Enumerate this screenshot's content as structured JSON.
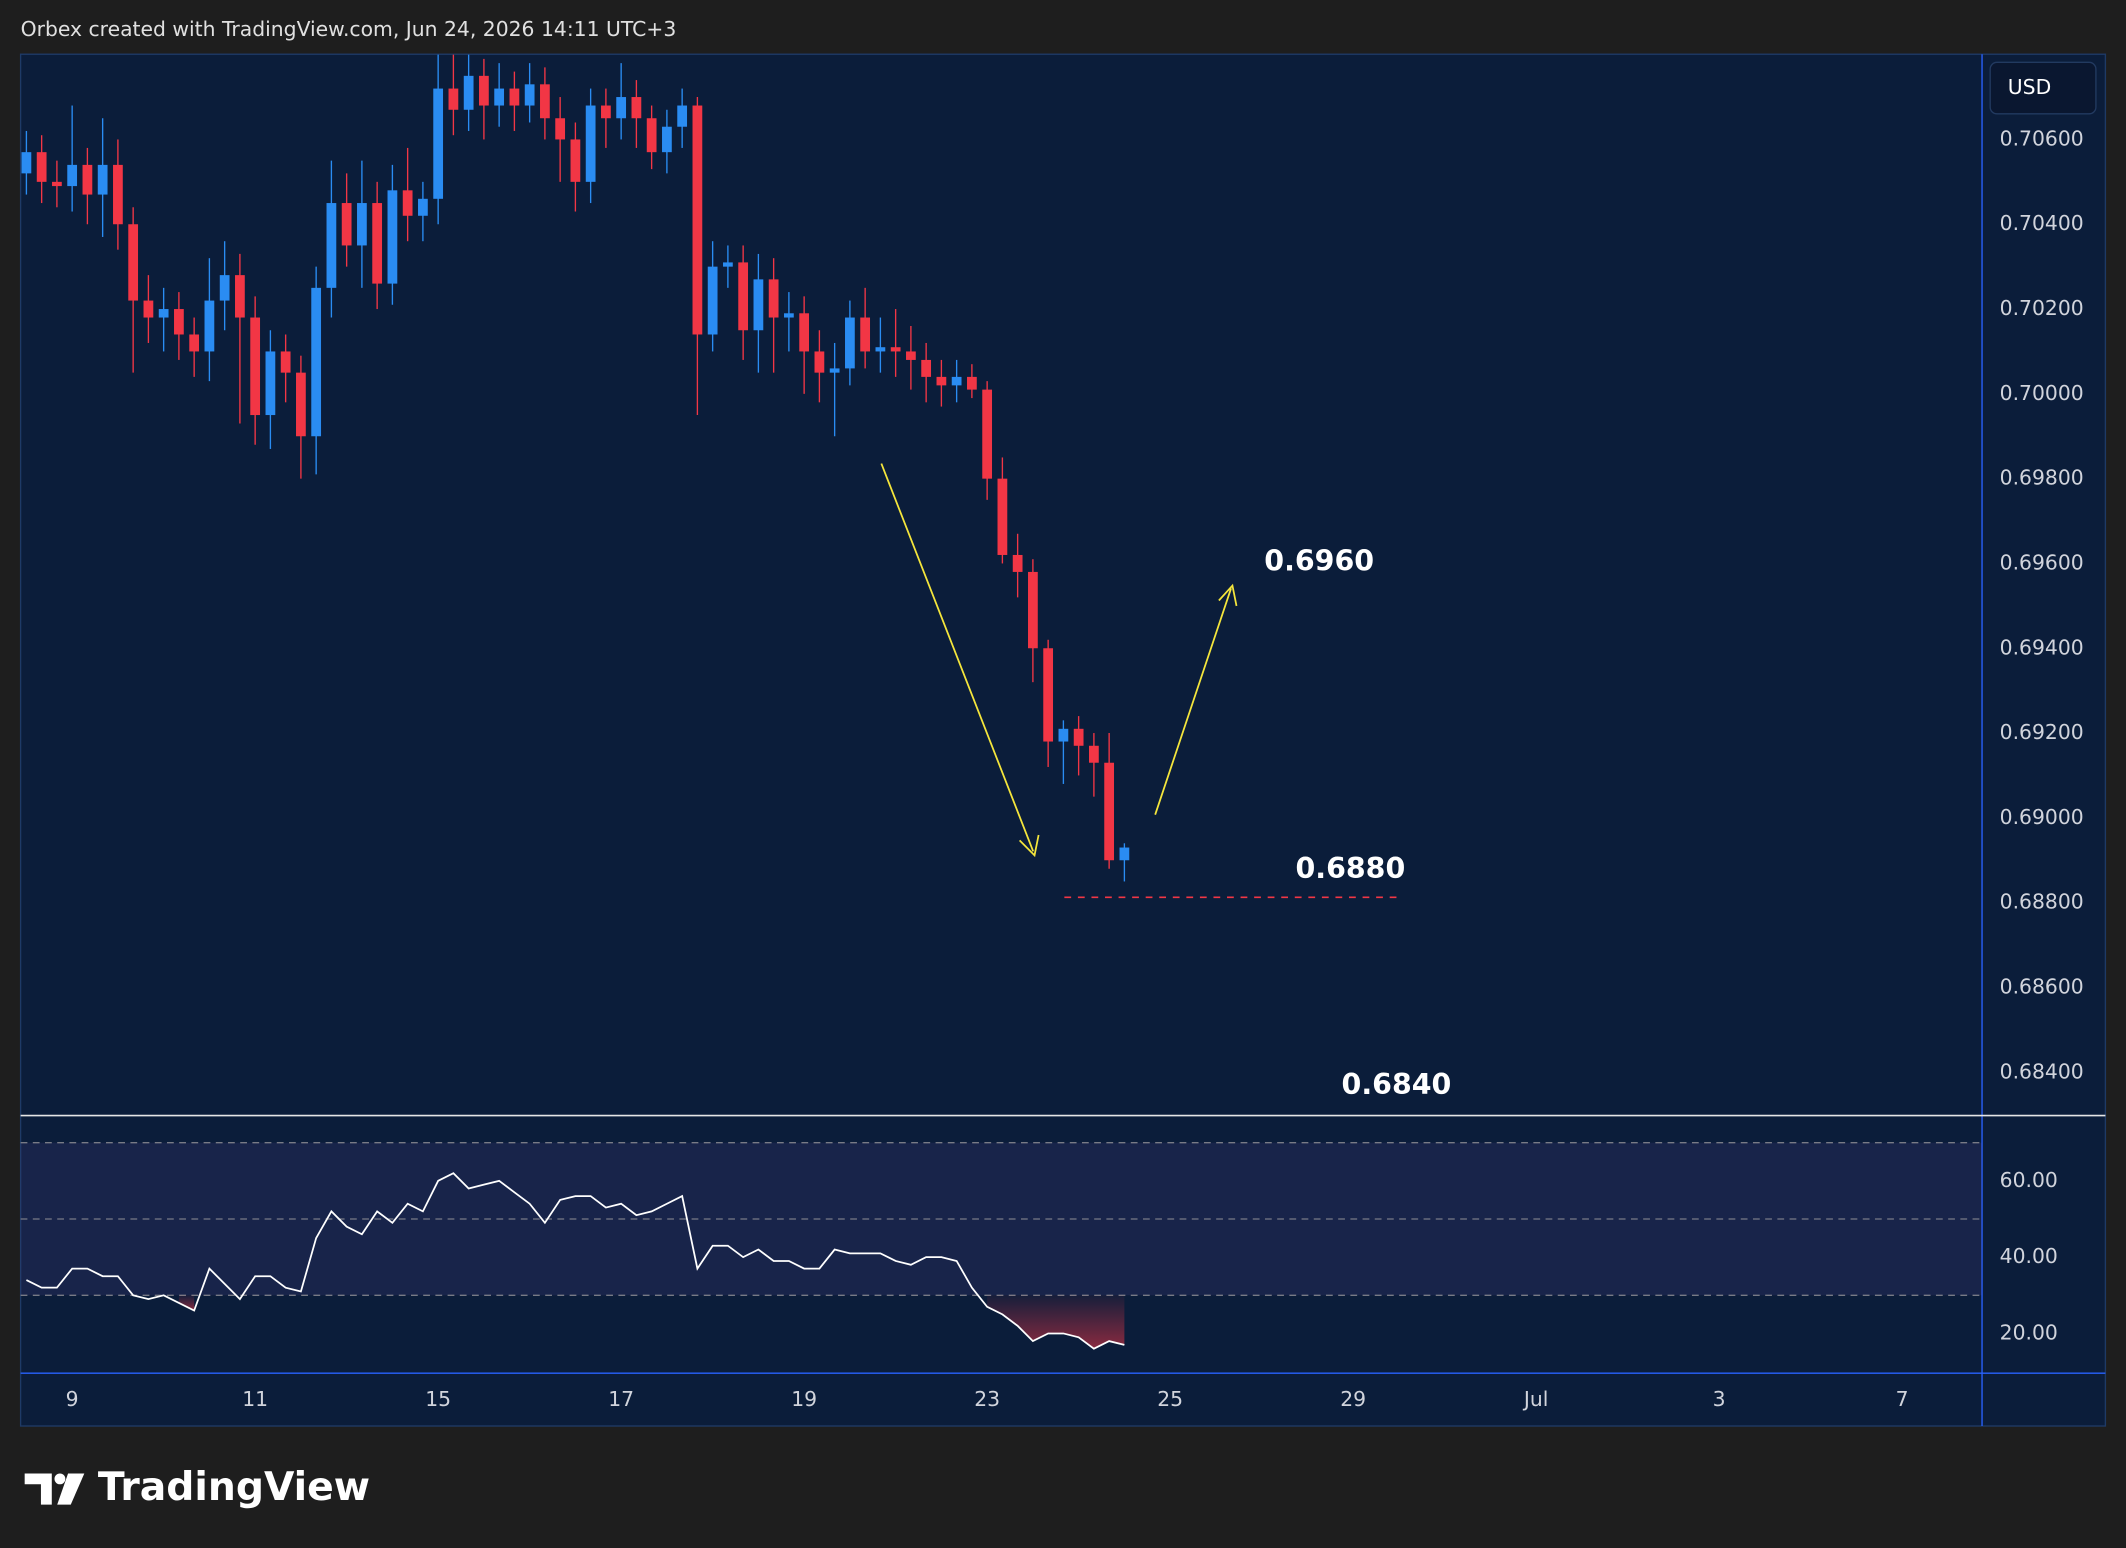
{
  "header": "Orbex created with TradingView.com, Jun 24, 2026 14:11 UTC+3",
  "footer": "TradingView",
  "chart_data": [
    {
      "type": "candlestick",
      "currency": "USD",
      "up_color": "#2a8cf2",
      "down_color": "#f23645",
      "x": [
        -3,
        -2,
        -1,
        0,
        1,
        2,
        3,
        4,
        5,
        6,
        7,
        8,
        9,
        10,
        11,
        12,
        13,
        14,
        15,
        16,
        17,
        18,
        19,
        20,
        21,
        22,
        23,
        24,
        25,
        26,
        27,
        28,
        29,
        30,
        31,
        32,
        33,
        34,
        35,
        36,
        37,
        38,
        39,
        40,
        41,
        42,
        43,
        44,
        45,
        46,
        47,
        48,
        49,
        50,
        51,
        52,
        53,
        54,
        55,
        56,
        57,
        58,
        59,
        60,
        61,
        62,
        63,
        64,
        65,
        66,
        67,
        68,
        69
      ],
      "ohlc": [
        [
          0.7052,
          0.7062,
          0.7047,
          0.7057
        ],
        [
          0.7057,
          0.7061,
          0.7045,
          0.705
        ],
        [
          0.705,
          0.7055,
          0.7044,
          0.7049
        ],
        [
          0.7049,
          0.7068,
          0.7043,
          0.7054
        ],
        [
          0.7054,
          0.7058,
          0.704,
          0.7047
        ],
        [
          0.7047,
          0.7065,
          0.7037,
          0.7054
        ],
        [
          0.7054,
          0.706,
          0.7034,
          0.704
        ],
        [
          0.704,
          0.7044,
          0.7005,
          0.7022
        ],
        [
          0.7022,
          0.7028,
          0.7012,
          0.7018
        ],
        [
          0.7018,
          0.7025,
          0.701,
          0.702
        ],
        [
          0.702,
          0.7024,
          0.7008,
          0.7014
        ],
        [
          0.7014,
          0.7018,
          0.7004,
          0.701
        ],
        [
          0.701,
          0.7032,
          0.7003,
          0.7022
        ],
        [
          0.7022,
          0.7036,
          0.7015,
          0.7028
        ],
        [
          0.7028,
          0.7033,
          0.6993,
          0.7018
        ],
        [
          0.7018,
          0.7023,
          0.6988,
          0.6995
        ],
        [
          0.6995,
          0.7015,
          0.6987,
          0.701
        ],
        [
          0.701,
          0.7014,
          0.6998,
          0.7005
        ],
        [
          0.7005,
          0.7009,
          0.698,
          0.699
        ],
        [
          0.699,
          0.703,
          0.6981,
          0.7025
        ],
        [
          0.7025,
          0.7055,
          0.7018,
          0.7045
        ],
        [
          0.7045,
          0.7052,
          0.703,
          0.7035
        ],
        [
          0.7035,
          0.7055,
          0.7025,
          0.7045
        ],
        [
          0.7045,
          0.705,
          0.702,
          0.7026
        ],
        [
          0.7026,
          0.7054,
          0.7021,
          0.7048
        ],
        [
          0.7048,
          0.7058,
          0.7036,
          0.7042
        ],
        [
          0.7042,
          0.705,
          0.7036,
          0.7046
        ],
        [
          0.7046,
          0.708,
          0.704,
          0.7072
        ],
        [
          0.7072,
          0.708,
          0.7061,
          0.7067
        ],
        [
          0.7067,
          0.708,
          0.7062,
          0.7075
        ],
        [
          0.7075,
          0.7079,
          0.706,
          0.7068
        ],
        [
          0.7068,
          0.7078,
          0.7063,
          0.7072
        ],
        [
          0.7072,
          0.7076,
          0.7062,
          0.7068
        ],
        [
          0.7068,
          0.7078,
          0.7064,
          0.7073
        ],
        [
          0.7073,
          0.7077,
          0.706,
          0.7065
        ],
        [
          0.7065,
          0.707,
          0.705,
          0.706
        ],
        [
          0.706,
          0.7064,
          0.7043,
          0.705
        ],
        [
          0.705,
          0.7072,
          0.7045,
          0.7068
        ],
        [
          0.7068,
          0.7072,
          0.7058,
          0.7065
        ],
        [
          0.7065,
          0.7078,
          0.706,
          0.707
        ],
        [
          0.707,
          0.7074,
          0.7058,
          0.7065
        ],
        [
          0.7065,
          0.7068,
          0.7053,
          0.7057
        ],
        [
          0.7057,
          0.7067,
          0.7052,
          0.7063
        ],
        [
          0.7063,
          0.7072,
          0.7058,
          0.7068
        ],
        [
          0.7068,
          0.707,
          0.6995,
          0.7014
        ],
        [
          0.7014,
          0.7036,
          0.701,
          0.703
        ],
        [
          0.703,
          0.7035,
          0.7025,
          0.7031
        ],
        [
          0.7031,
          0.7035,
          0.7008,
          0.7015
        ],
        [
          0.7015,
          0.7033,
          0.7005,
          0.7027
        ],
        [
          0.7027,
          0.7032,
          0.7005,
          0.7018
        ],
        [
          0.7018,
          0.7024,
          0.701,
          0.7019
        ],
        [
          0.7019,
          0.7023,
          0.7,
          0.701
        ],
        [
          0.701,
          0.7015,
          0.6998,
          0.7005
        ],
        [
          0.7005,
          0.7012,
          0.699,
          0.7006
        ],
        [
          0.7006,
          0.7022,
          0.7002,
          0.7018
        ],
        [
          0.7018,
          0.7025,
          0.7006,
          0.701
        ],
        [
          0.701,
          0.7018,
          0.7005,
          0.7011
        ],
        [
          0.7011,
          0.702,
          0.7004,
          0.701
        ],
        [
          0.701,
          0.7016,
          0.7001,
          0.7008
        ],
        [
          0.7008,
          0.7012,
          0.6998,
          0.7004
        ],
        [
          0.7004,
          0.7008,
          0.6997,
          0.7002
        ],
        [
          0.7002,
          0.7008,
          0.6998,
          0.7004
        ],
        [
          0.7004,
          0.7007,
          0.6999,
          0.7001
        ],
        [
          0.7001,
          0.7003,
          0.6975,
          0.698
        ],
        [
          0.698,
          0.6985,
          0.696,
          0.6962
        ],
        [
          0.6962,
          0.6967,
          0.6952,
          0.6958
        ],
        [
          0.6958,
          0.6961,
          0.6932,
          0.694
        ],
        [
          0.694,
          0.6942,
          0.6912,
          0.6918
        ],
        [
          0.6918,
          0.6923,
          0.6908,
          0.6921
        ],
        [
          0.6921,
          0.6924,
          0.691,
          0.6917
        ],
        [
          0.6917,
          0.692,
          0.6905,
          0.6913
        ],
        [
          0.6913,
          0.692,
          0.6888,
          0.689
        ],
        [
          0.689,
          0.6894,
          0.6885,
          0.6893
        ]
      ],
      "xlim": [
        -3.38,
        125.24
      ],
      "xticks": [
        {
          "value": 0,
          "label": "9"
        },
        {
          "value": 12,
          "label": "11"
        },
        {
          "value": 24,
          "label": "15"
        },
        {
          "value": 36,
          "label": "17"
        },
        {
          "value": 48,
          "label": "19"
        },
        {
          "value": 60,
          "label": "23"
        },
        {
          "value": 72,
          "label": "25"
        },
        {
          "value": 84,
          "label": "29"
        },
        {
          "value": 96,
          "label": "Jul"
        },
        {
          "value": 108,
          "label": "3"
        },
        {
          "value": 120,
          "label": "7"
        }
      ],
      "ylim": [
        0.68301,
        0.70801
      ],
      "yticks": [
        {
          "value": 0.684,
          "label": "0.68400"
        },
        {
          "value": 0.686,
          "label": "0.68600"
        },
        {
          "value": 0.688,
          "label": "0.68800"
        },
        {
          "value": 0.69,
          "label": "0.69000"
        },
        {
          "value": 0.692,
          "label": "0.69200"
        },
        {
          "value": 0.694,
          "label": "0.69400"
        },
        {
          "value": 0.696,
          "label": "0.69600"
        },
        {
          "value": 0.698,
          "label": "0.69800"
        },
        {
          "value": 0.7,
          "label": "0.70000"
        },
        {
          "value": 0.702,
          "label": "0.70200"
        },
        {
          "value": 0.704,
          "label": "0.70400"
        },
        {
          "value": 0.706,
          "label": "0.70600"
        }
      ],
      "annotations": [
        "0.6960",
        "0.6880",
        "0.6840"
      ]
    },
    {
      "type": "line",
      "color": "#ffffff",
      "values": [
        34,
        32,
        32,
        37,
        37,
        35,
        35,
        30,
        29,
        30,
        28,
        26,
        37,
        33,
        29,
        35,
        35,
        32,
        31,
        45,
        52,
        48,
        46,
        52,
        49,
        54,
        52,
        60,
        62,
        58,
        59,
        60,
        57,
        54,
        49,
        55,
        56,
        56,
        53,
        54,
        51,
        52,
        54,
        56,
        37,
        43,
        43,
        40,
        42,
        39,
        39,
        37,
        37,
        42,
        41,
        41,
        41,
        39,
        38,
        40,
        40,
        39,
        32,
        27,
        25,
        22,
        18,
        20,
        20,
        19,
        16,
        18,
        17
      ],
      "ylim": [
        9.6,
        77.1
      ],
      "yticks": [
        {
          "value": 20,
          "label": "20.00"
        },
        {
          "value": 40,
          "label": "40.00"
        },
        {
          "value": 60,
          "label": "60.00"
        }
      ],
      "levels": [
        30,
        50,
        70
      ]
    }
  ]
}
